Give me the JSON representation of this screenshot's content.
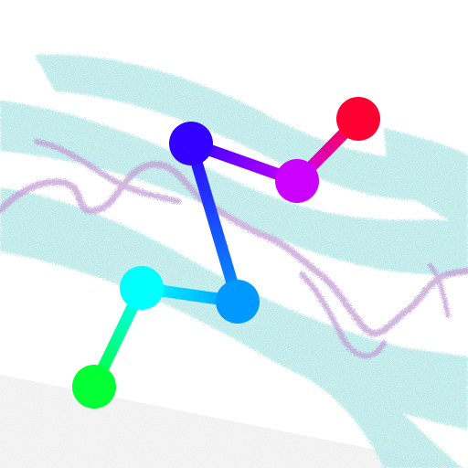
{
  "scene": {
    "background_color": "#ffffff",
    "strip_color": "#eeeeee",
    "brush_color": "#a8e4e4",
    "scribble_color": "#c3a0d6",
    "path_node_colors": [
      "#00ff33",
      "#00ffff",
      "#0099ff",
      "#3300ff",
      "#cc00ff",
      "#ff0033"
    ]
  }
}
